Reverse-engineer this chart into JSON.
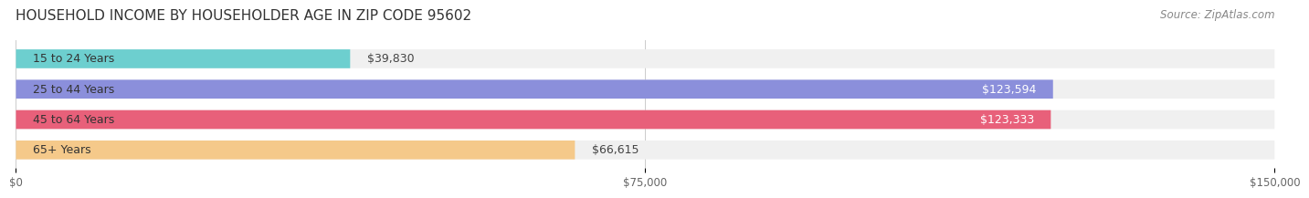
{
  "title": "HOUSEHOLD INCOME BY HOUSEHOLDER AGE IN ZIP CODE 95602",
  "source": "Source: ZipAtlas.com",
  "categories": [
    "15 to 24 Years",
    "25 to 44 Years",
    "45 to 64 Years",
    "65+ Years"
  ],
  "values": [
    39830,
    123594,
    123333,
    66615
  ],
  "bar_colors": [
    "#6dcfcf",
    "#8b8fdb",
    "#e8607a",
    "#f5c98a"
  ],
  "bar_bg_color": "#f0f0f0",
  "label_colors": [
    "#444444",
    "#ffffff",
    "#ffffff",
    "#444444"
  ],
  "value_labels": [
    "$39,830",
    "$123,594",
    "$123,333",
    "$66,615"
  ],
  "xmax": 150000,
  "xticks": [
    0,
    75000,
    150000
  ],
  "xtick_labels": [
    "$0",
    "$75,000",
    "$150,000"
  ],
  "title_fontsize": 11,
  "source_fontsize": 8.5,
  "label_fontsize": 9,
  "value_fontsize": 9,
  "background_color": "#ffffff"
}
